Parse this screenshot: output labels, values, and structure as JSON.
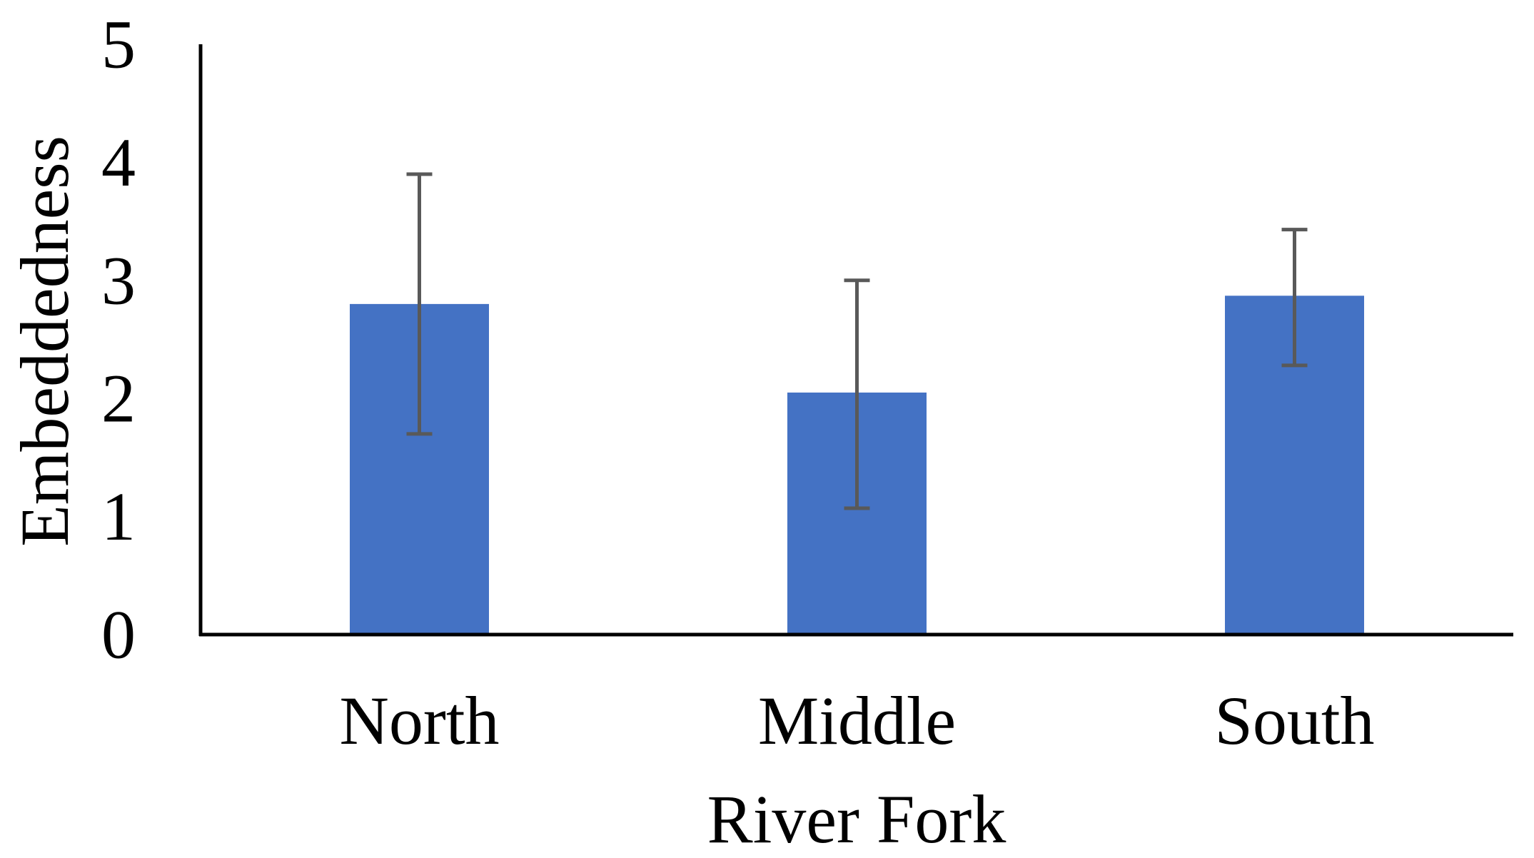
{
  "chart_data": {
    "type": "bar",
    "title": "",
    "xlabel": "River Fork",
    "ylabel": "Embeddedness",
    "categories": [
      "North",
      "Middle",
      "South"
    ],
    "values": [
      2.8,
      2.05,
      2.87
    ],
    "error_upper": [
      3.9,
      3.0,
      3.43
    ],
    "error_lower": [
      1.7,
      1.07,
      2.28
    ],
    "ylim": [
      0,
      5
    ],
    "yticks": [
      "0",
      "1",
      "2",
      "3",
      "4",
      "5"
    ],
    "grid": false,
    "legend": "none",
    "bar_color": "#4472C4",
    "error_bar_color": "#595959",
    "axis_color": "#000000"
  }
}
